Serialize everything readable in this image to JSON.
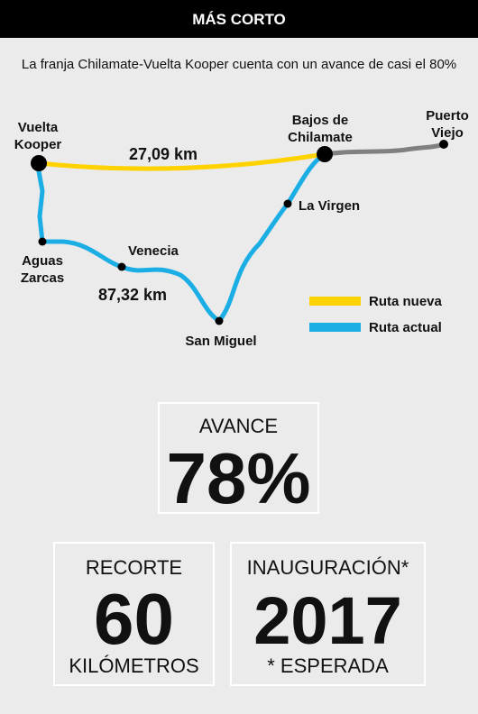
{
  "header": {
    "title": "MÁS CORTO"
  },
  "subtitle": "La franja Chilamate-Vuelta Kooper cuenta con un avance de casi el 80%",
  "map": {
    "places": [
      {
        "lines": [
          "Vuelta",
          "Kooper"
        ]
      },
      {
        "lines": [
          "Bajos de",
          "Chilamate"
        ]
      },
      {
        "lines": [
          "Puerto",
          "Viejo"
        ]
      },
      {
        "lines": [
          "La Virgen"
        ]
      },
      {
        "lines": [
          "Aguas",
          "Zarcas"
        ]
      },
      {
        "lines": [
          "Venecia"
        ]
      },
      {
        "lines": [
          "San Miguel"
        ]
      }
    ],
    "distances": [
      "27,09 km",
      "87,32 km"
    ],
    "legend": [
      {
        "label": "Ruta nueva",
        "color": "#ffd200"
      },
      {
        "label": "Ruta actual",
        "color": "#1aaee5"
      }
    ],
    "other_road_color": "#808080"
  },
  "stats": [
    {
      "label": "AVANCE",
      "value": "78%"
    },
    {
      "label": "RECORTE",
      "value": "60",
      "note": "KILÓMETROS"
    },
    {
      "label": "INAUGURACIÓN*",
      "value": "2017",
      "note": "* ESPERADA"
    }
  ]
}
